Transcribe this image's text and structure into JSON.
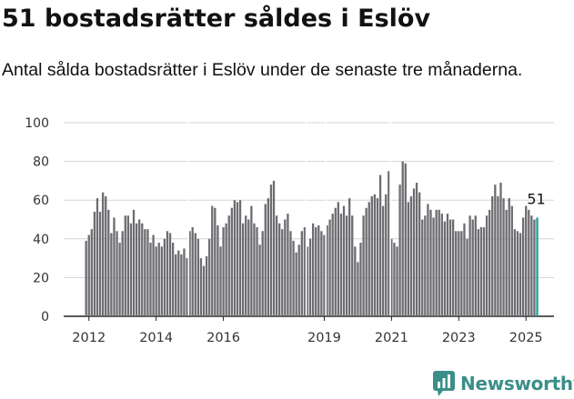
{
  "title": "51 bostadsrätter såldes i Eslöv",
  "subtitle": "Antal sålda bostadsrätter i Eslöv under de senaste tre månaderna.",
  "brand": {
    "name": "Newsworthy",
    "icon": "newsworthy-chart-bubble-icon"
  },
  "chart_data": {
    "type": "bar",
    "ylim": [
      0,
      100
    ],
    "y_ticks": [
      "0",
      "20",
      "40",
      "60",
      "80",
      "100"
    ],
    "x_ticks": [
      "2012",
      "2014",
      "2016",
      "2019",
      "2021",
      "2023",
      "2025"
    ],
    "grid": true,
    "bar_color": "#6d6c71",
    "highlight_color": "#1f9e96",
    "last_value_label": "51",
    "start": "2012-01",
    "end": "2025-09",
    "values": [
      39,
      42,
      45,
      54,
      61,
      54,
      64,
      62,
      55,
      43,
      51,
      44,
      38,
      44,
      52,
      52,
      48,
      55,
      48,
      50,
      48,
      45,
      45,
      38,
      42,
      36,
      38,
      36,
      40,
      44,
      43,
      38,
      32,
      34,
      32,
      35,
      30,
      44,
      46,
      43,
      40,
      30,
      26,
      31,
      40,
      57,
      56,
      47,
      36,
      46,
      48,
      52,
      56,
      60,
      59,
      60,
      48,
      52,
      50,
      57,
      48,
      46,
      37,
      44,
      58,
      61,
      68,
      70,
      52,
      48,
      45,
      50,
      53,
      44,
      39,
      33,
      37,
      44,
      46,
      36,
      40,
      48,
      46,
      47,
      44,
      42,
      47,
      50,
      53,
      56,
      59,
      53,
      57,
      52,
      61,
      52,
      36,
      28,
      38,
      52,
      56,
      59,
      62,
      63,
      61,
      73,
      57,
      63,
      75,
      40,
      38,
      36,
      68,
      80,
      79,
      59,
      62,
      66,
      69,
      64,
      50,
      52,
      58,
      55,
      51,
      55,
      55,
      53,
      49,
      53,
      50,
      50,
      44,
      44,
      44,
      48,
      40,
      52,
      50,
      52,
      45,
      46,
      46,
      52,
      55,
      62,
      68,
      62,
      69,
      61,
      55,
      61,
      57,
      45,
      44,
      43,
      51,
      57,
      55,
      52,
      50,
      51
    ],
    "markers": [
      {
        "index": 1,
        "label": "2012"
      },
      {
        "index": 25,
        "label": "2014"
      },
      {
        "index": 49,
        "label": "2016"
      },
      {
        "index": 85,
        "label": "2019"
      },
      {
        "index": 109,
        "label": "2021"
      },
      {
        "index": 133,
        "label": "2023"
      },
      {
        "index": 157,
        "label": "2025"
      }
    ],
    "gaps_after": [
      36,
      78,
      85,
      108
    ]
  }
}
